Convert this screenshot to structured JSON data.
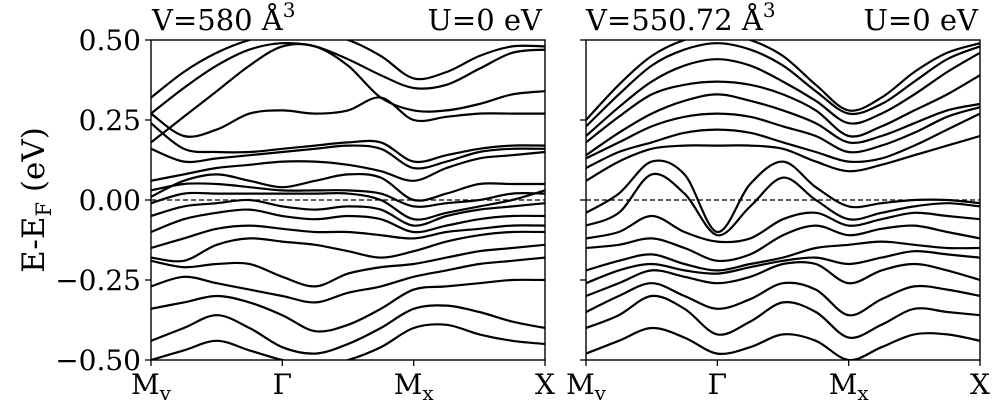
{
  "figure": {
    "ylabel_main": "E-E",
    "ylabel_sub": "F",
    "ylabel_unit": " (eV)",
    "yticks": [
      "0.50",
      "0.25",
      "0.00",
      "−0.25",
      "−0.50"
    ],
    "kpath": [
      {
        "main": "M",
        "sub": "y"
      },
      {
        "main": "Γ",
        "sub": ""
      },
      {
        "main": "M",
        "sub": "x"
      },
      {
        "main": "X",
        "sub": ""
      }
    ]
  },
  "chart_data": [
    {
      "type": "line",
      "title_left": "V=580 Å",
      "title_left_sup": "3",
      "title_right": "U=0 eV",
      "ylabel": "E-EF (eV)",
      "ylim": [
        -0.5,
        0.5
      ],
      "x_range": [
        0,
        3
      ],
      "fermi_level": 0.0,
      "kpoint_positions": [
        0,
        1,
        2,
        3
      ],
      "band_knots_x": [
        0,
        0.25,
        0.5,
        0.75,
        1,
        1.25,
        1.5,
        1.75,
        2,
        2.25,
        2.5,
        2.75,
        3
      ],
      "bands": [
        [
          0.32,
          0.4,
          0.46,
          0.5,
          0.52,
          0.52,
          0.5,
          0.45,
          0.38,
          0.4,
          0.45,
          0.48,
          0.48
        ],
        [
          0.27,
          0.35,
          0.42,
          0.47,
          0.49,
          0.48,
          0.44,
          0.39,
          0.35,
          0.36,
          0.41,
          0.46,
          0.47
        ],
        [
          0.18,
          0.26,
          0.34,
          0.42,
          0.48,
          0.48,
          0.42,
          0.32,
          0.28,
          0.28,
          0.3,
          0.33,
          0.34
        ],
        [
          0.27,
          0.2,
          0.22,
          0.27,
          0.28,
          0.27,
          0.28,
          0.32,
          0.25,
          0.26,
          0.27,
          0.27,
          0.27
        ],
        [
          0.24,
          0.16,
          0.15,
          0.15,
          0.16,
          0.17,
          0.18,
          0.18,
          0.12,
          0.14,
          0.16,
          0.17,
          0.17
        ],
        [
          0.16,
          0.12,
          0.13,
          0.14,
          0.15,
          0.16,
          0.17,
          0.16,
          0.1,
          0.12,
          0.15,
          0.16,
          0.16
        ],
        [
          0.06,
          0.08,
          0.1,
          0.11,
          0.12,
          0.12,
          0.11,
          0.09,
          0.06,
          0.1,
          0.13,
          0.14,
          0.15
        ],
        [
          0.01,
          0.06,
          0.08,
          0.06,
          0.04,
          0.06,
          0.08,
          0.07,
          0.0,
          0.02,
          0.05,
          0.05,
          0.05
        ],
        [
          0.03,
          0.05,
          0.05,
          0.04,
          0.03,
          0.03,
          0.03,
          0.02,
          -0.02,
          -0.01,
          0.0,
          0.02,
          0.02
        ],
        [
          -0.01,
          0.02,
          0.02,
          0.02,
          0.02,
          0.02,
          0.02,
          0.0,
          -0.06,
          -0.04,
          -0.02,
          0.0,
          0.03
        ],
        [
          -0.05,
          -0.02,
          -0.01,
          0.0,
          -0.02,
          -0.03,
          -0.02,
          -0.03,
          -0.08,
          -0.05,
          -0.03,
          -0.02,
          -0.01
        ],
        [
          -0.1,
          -0.06,
          -0.04,
          -0.03,
          -0.05,
          -0.06,
          -0.05,
          -0.06,
          -0.1,
          -0.08,
          -0.06,
          -0.05,
          -0.05
        ],
        [
          -0.15,
          -0.12,
          -0.09,
          -0.08,
          -0.09,
          -0.1,
          -0.1,
          -0.11,
          -0.12,
          -0.1,
          -0.09,
          -0.08,
          -0.08
        ],
        [
          -0.18,
          -0.19,
          -0.14,
          -0.12,
          -0.13,
          -0.14,
          -0.16,
          -0.18,
          -0.16,
          -0.13,
          -0.11,
          -0.1,
          -0.1
        ],
        [
          -0.19,
          -0.21,
          -0.2,
          -0.2,
          -0.24,
          -0.27,
          -0.23,
          -0.21,
          -0.2,
          -0.18,
          -0.16,
          -0.15,
          -0.14
        ],
        [
          -0.27,
          -0.24,
          -0.26,
          -0.28,
          -0.3,
          -0.32,
          -0.29,
          -0.27,
          -0.24,
          -0.22,
          -0.2,
          -0.19,
          -0.18
        ],
        [
          -0.34,
          -0.32,
          -0.3,
          -0.32,
          -0.36,
          -0.41,
          -0.39,
          -0.34,
          -0.28,
          -0.27,
          -0.26,
          -0.25,
          -0.25
        ],
        [
          -0.44,
          -0.4,
          -0.36,
          -0.4,
          -0.46,
          -0.48,
          -0.45,
          -0.4,
          -0.34,
          -0.33,
          -0.35,
          -0.38,
          -0.4
        ],
        [
          -0.5,
          -0.47,
          -0.44,
          -0.47,
          -0.5,
          -0.52,
          -0.5,
          -0.46,
          -0.4,
          -0.39,
          -0.42,
          -0.44,
          -0.45
        ]
      ]
    },
    {
      "type": "line",
      "title_left": "V=550.72 Å",
      "title_left_sup": "3",
      "title_right": "U=0 eV",
      "ylim": [
        -0.5,
        0.5
      ],
      "x_range": [
        0,
        3
      ],
      "fermi_level": 0.0,
      "kpoint_positions": [
        0,
        1,
        2,
        3
      ],
      "band_knots_x": [
        0,
        0.25,
        0.5,
        0.75,
        1,
        1.25,
        1.5,
        1.75,
        2,
        2.25,
        2.5,
        2.75,
        3
      ],
      "bands": [
        [
          0.25,
          0.36,
          0.45,
          0.5,
          0.52,
          0.5,
          0.45,
          0.36,
          0.28,
          0.32,
          0.4,
          0.46,
          0.49
        ],
        [
          0.23,
          0.33,
          0.42,
          0.47,
          0.49,
          0.47,
          0.42,
          0.34,
          0.27,
          0.3,
          0.37,
          0.44,
          0.48
        ],
        [
          0.2,
          0.29,
          0.37,
          0.42,
          0.44,
          0.42,
          0.37,
          0.31,
          0.24,
          0.27,
          0.33,
          0.4,
          0.46
        ],
        [
          0.18,
          0.26,
          0.33,
          0.36,
          0.37,
          0.36,
          0.33,
          0.28,
          0.2,
          0.23,
          0.28,
          0.33,
          0.39
        ],
        [
          0.14,
          0.21,
          0.27,
          0.31,
          0.33,
          0.31,
          0.28,
          0.24,
          0.18,
          0.2,
          0.24,
          0.28,
          0.3
        ],
        [
          0.13,
          0.18,
          0.23,
          0.26,
          0.27,
          0.26,
          0.23,
          0.2,
          0.15,
          0.17,
          0.21,
          0.26,
          0.29
        ],
        [
          0.1,
          0.15,
          0.18,
          0.21,
          0.22,
          0.21,
          0.18,
          0.15,
          0.12,
          0.13,
          0.17,
          0.22,
          0.27
        ],
        [
          0.06,
          0.12,
          0.16,
          0.17,
          0.17,
          0.17,
          0.16,
          0.12,
          0.09,
          0.11,
          0.14,
          0.17,
          0.2
        ],
        [
          -0.04,
          0.02,
          0.12,
          0.08,
          -0.1,
          0.05,
          0.12,
          0.04,
          -0.02,
          -0.01,
          0.0,
          0.0,
          -0.01
        ],
        [
          -0.08,
          -0.04,
          0.08,
          0.02,
          -0.11,
          -0.02,
          0.07,
          0.0,
          -0.06,
          -0.04,
          -0.02,
          -0.01,
          -0.02
        ],
        [
          -0.12,
          -0.1,
          -0.05,
          -0.1,
          -0.13,
          -0.12,
          -0.06,
          -0.04,
          -0.08,
          -0.06,
          -0.04,
          -0.05,
          -0.06
        ],
        [
          -0.15,
          -0.14,
          -0.12,
          -0.15,
          -0.19,
          -0.17,
          -0.11,
          -0.08,
          -0.11,
          -0.09,
          -0.08,
          -0.1,
          -0.12
        ],
        [
          -0.22,
          -0.19,
          -0.17,
          -0.2,
          -0.22,
          -0.2,
          -0.18,
          -0.15,
          -0.14,
          -0.13,
          -0.14,
          -0.15,
          -0.15
        ],
        [
          -0.26,
          -0.22,
          -0.2,
          -0.22,
          -0.23,
          -0.21,
          -0.19,
          -0.18,
          -0.2,
          -0.18,
          -0.16,
          -0.17,
          -0.18
        ],
        [
          -0.3,
          -0.26,
          -0.22,
          -0.24,
          -0.26,
          -0.24,
          -0.2,
          -0.2,
          -0.26,
          -0.22,
          -0.2,
          -0.22,
          -0.25
        ],
        [
          -0.35,
          -0.3,
          -0.26,
          -0.3,
          -0.34,
          -0.31,
          -0.26,
          -0.28,
          -0.36,
          -0.31,
          -0.27,
          -0.28,
          -0.3
        ],
        [
          -0.4,
          -0.36,
          -0.3,
          -0.34,
          -0.42,
          -0.38,
          -0.32,
          -0.35,
          -0.43,
          -0.39,
          -0.34,
          -0.35,
          -0.36
        ],
        [
          -0.48,
          -0.44,
          -0.4,
          -0.43,
          -0.48,
          -0.46,
          -0.42,
          -0.44,
          -0.5,
          -0.46,
          -0.42,
          -0.42,
          -0.44
        ]
      ]
    }
  ]
}
